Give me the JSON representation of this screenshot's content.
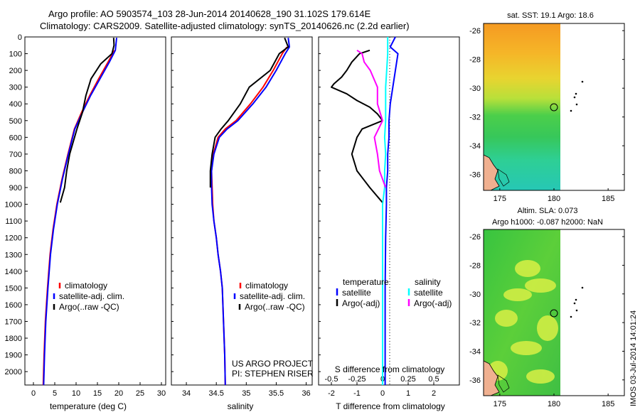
{
  "header": {
    "line1": "Argo profile: AO 5903574_103 28-Jun-2014 20140628_190 31.102S 179.614E",
    "line2": "Climatology: CARS2009. Satellite-adjusted climatology: synTS_20140626.nc (2.2d earlier)"
  },
  "colors": {
    "climatology": "#ff0000",
    "satellite": "#0000ff",
    "argo": "#000000",
    "salinity_satellite": "#00ffff",
    "salinity_argo": "#ff00ff"
  },
  "stamp": "IMOS 03-Jul-2014 14:01:24",
  "project": {
    "line1": "US ARGO PROJECT",
    "line2": "PI: STEPHEN RISER"
  },
  "chart_data": [
    {
      "type": "line",
      "title": "",
      "xlabel": "temperature (deg C)",
      "ylabel": "",
      "xlim": [
        -2,
        31
      ],
      "ylim": [
        2080,
        0
      ],
      "xticks": [
        "0",
        "5",
        "10",
        "15",
        "20",
        "25",
        "30"
      ],
      "yticks": [
        "0",
        "100",
        "200",
        "300",
        "400",
        "500",
        "600",
        "700",
        "800",
        "900",
        "1000",
        "1100",
        "1200",
        "1300",
        "1400",
        "1500",
        "1600",
        "1700",
        "1800",
        "1900",
        "2000"
      ],
      "legend": [
        "climatology",
        "satellite-adj. clim.",
        "Argo(..raw -QC)"
      ],
      "series": [
        {
          "name": "climatology",
          "depth": [
            80,
            150,
            250,
            350,
            450,
            550,
            700,
            850,
            1000,
            1150,
            1300,
            1500,
            1700,
            1900,
            2080
          ],
          "values": [
            19,
            17.5,
            15.3,
            13.2,
            11.3,
            9.6,
            8.1,
            6.7,
            5.5,
            4.6,
            3.9,
            3.3,
            2.8,
            2.5,
            2.3
          ]
        },
        {
          "name": "satellite-adj. clim.",
          "depth": [
            5,
            80,
            150,
            250,
            350,
            450,
            550,
            700,
            850,
            1000,
            1150,
            1300,
            1500,
            1700,
            1900,
            2080
          ],
          "values": [
            19.5,
            19.2,
            17.8,
            15.6,
            13.4,
            11.5,
            9.7,
            8.2,
            6.8,
            5.6,
            4.7,
            4.0,
            3.4,
            2.9,
            2.6,
            2.4
          ]
        },
        {
          "name": "Argo(..raw -QC)",
          "depth": [
            5,
            50,
            100,
            160,
            250,
            350,
            450,
            550,
            700,
            800,
            900,
            990
          ],
          "values": [
            18.8,
            18.9,
            18.4,
            15.8,
            13.5,
            12.3,
            11.5,
            10.2,
            8.5,
            7.8,
            7.3,
            6.3
          ]
        }
      ]
    },
    {
      "type": "line",
      "title": "",
      "xlabel": "salinity",
      "ylabel": "",
      "xlim": [
        33.75,
        36.1
      ],
      "ylim": [
        2080,
        0
      ],
      "xticks": [
        "34",
        "34.5",
        "35",
        "35.5",
        "36"
      ],
      "legend": [
        "climatology",
        "satellite-adj. clim.",
        "Argo(..raw -QC)"
      ],
      "series": [
        {
          "name": "climatology",
          "depth": [
            60,
            100,
            200,
            300,
            400,
            500,
            550,
            600,
            700,
            800,
            900,
            1000,
            1100,
            1200,
            1300,
            1400,
            1500,
            1700,
            1900,
            2080
          ],
          "values": [
            35.68,
            35.6,
            35.45,
            35.28,
            35.07,
            34.83,
            34.65,
            34.53,
            34.45,
            34.42,
            34.43,
            34.44,
            34.46,
            34.5,
            34.53,
            34.57,
            34.6,
            34.62,
            34.64,
            34.65
          ]
        },
        {
          "name": "satellite-adj. clim.",
          "depth": [
            5,
            60,
            100,
            200,
            300,
            400,
            500,
            550,
            600,
            700,
            800,
            900,
            1000,
            1100,
            1200,
            1300,
            1400,
            1500,
            1700,
            1900,
            2080
          ],
          "values": [
            35.7,
            35.72,
            35.65,
            35.5,
            35.33,
            35.11,
            34.86,
            34.68,
            34.55,
            34.46,
            34.42,
            34.42,
            34.43,
            34.46,
            34.5,
            34.53,
            34.57,
            34.6,
            34.62,
            34.64,
            34.65
          ]
        },
        {
          "name": "Argo(..raw -QC)",
          "depth": [
            5,
            60,
            100,
            200,
            300,
            400,
            500,
            550,
            600,
            700,
            800,
            900
          ],
          "values": [
            35.64,
            35.7,
            35.55,
            35.4,
            35.05,
            34.9,
            34.7,
            34.58,
            34.48,
            34.43,
            34.4,
            34.4
          ]
        }
      ]
    },
    {
      "type": "line",
      "title": "",
      "xlabel": "T difference from climatology",
      "top_xlabel": "S difference from climatology",
      "ylabel": "",
      "xlim": [
        -2.5,
        3
      ],
      "ylim": [
        2080,
        0
      ],
      "xticks": [
        "-2",
        "-1",
        "0",
        "1",
        "2"
      ],
      "top_xticks": [
        "-0.5",
        "-0.25",
        "0",
        "0.25",
        "0.5"
      ],
      "legend_headers": [
        "temperature",
        "salinity"
      ],
      "legend": [
        "satellite",
        "Argo(-adj)",
        "satellite",
        "Argo(-adj)"
      ],
      "series": [
        {
          "name": "T satellite",
          "depth": [
            0,
            60,
            100,
            200,
            300,
            400,
            500,
            600,
            700,
            800,
            900,
            1000,
            1200,
            1500,
            1800,
            2080
          ],
          "values": [
            0.5,
            0.3,
            0.6,
            0.5,
            0.4,
            0.3,
            0.25,
            0.25,
            0.2,
            0.2,
            0.15,
            0.15,
            0.12,
            0.1,
            0.1,
            0.1
          ]
        },
        {
          "name": "T Argo(-adj)",
          "depth": [
            80,
            100,
            150,
            200,
            240,
            280,
            300,
            340,
            380,
            420,
            460,
            500,
            550,
            600,
            700,
            800,
            900,
            990
          ],
          "values": [
            -0.5,
            -0.9,
            -1.2,
            -1.4,
            -1.6,
            -1.9,
            -2.0,
            -1.4,
            -1.0,
            -0.5,
            -0.2,
            0,
            -0.8,
            -1.0,
            -1.2,
            -1.0,
            -0.5,
            0
          ]
        },
        {
          "name": "S satellite",
          "depth": [
            0,
            100,
            200,
            300,
            400,
            500,
            600,
            700,
            800,
            900,
            1000,
            1200,
            1500,
            1800,
            2080
          ],
          "values": [
            0.05,
            0.05,
            0.04,
            0.03,
            0.03,
            0.03,
            0.02,
            0.03,
            0.02,
            0.02,
            0.0,
            0.0,
            0.0,
            0.0,
            0.0
          ]
        },
        {
          "name": "S Argo(-adj)",
          "depth": [
            80,
            100,
            150,
            200,
            300,
            400,
            500,
            600,
            700,
            800,
            900
          ],
          "values": [
            -0.25,
            -0.2,
            -0.18,
            -0.12,
            -0.05,
            -0.05,
            0,
            -0.08,
            -0.05,
            -0.03,
            0.03
          ]
        }
      ]
    }
  ],
  "sst_map": {
    "title": "sat. SST: 19.1  Argo: 18.6",
    "xticks": [
      "175",
      "180",
      "185"
    ],
    "yticks": [
      "-26",
      "-28",
      "-30",
      "-32",
      "-34",
      "-36"
    ]
  },
  "sla_map": {
    "title_line1": "Altim. SLA: 0.073",
    "title_line2": "Argo h1000: -0.087 h2000: NaN",
    "xticks": [
      "175",
      "180",
      "185"
    ],
    "yticks": [
      "-26",
      "-28",
      "-30",
      "-32",
      "-34",
      "-36"
    ]
  }
}
